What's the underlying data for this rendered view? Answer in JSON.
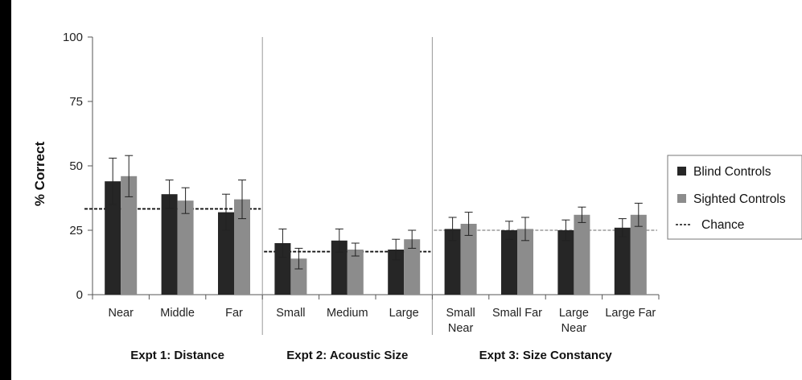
{
  "chart_data": {
    "type": "bar",
    "ylabel": "% Correct",
    "ylim": [
      0,
      100
    ],
    "yticks": [
      0,
      25,
      50,
      75,
      100
    ],
    "grid": false,
    "legend_position": "right",
    "groups": [
      {
        "label": "Expt 1: Distance",
        "categories": [
          "Near",
          "Middle",
          "Far"
        ],
        "chance": 33.3
      },
      {
        "label": "Expt 2: Acoustic Size",
        "categories": [
          "Small",
          "Medium",
          "Large"
        ],
        "chance": 16.7
      },
      {
        "label": "Expt 3: Size Constancy",
        "categories": [
          [
            "Small",
            "Near"
          ],
          [
            "Small Far"
          ],
          [
            "Large",
            "Near"
          ],
          [
            "Large Far"
          ]
        ],
        "chance": 25
      }
    ],
    "series": [
      {
        "name": "Blind Controls",
        "color": "#262626",
        "values": [
          44,
          39,
          32,
          20,
          21,
          17.5,
          25.5,
          25,
          25,
          26
        ],
        "errors": [
          9,
          5.5,
          7,
          5.5,
          4.5,
          4,
          4.5,
          3.5,
          4,
          3.5
        ]
      },
      {
        "name": "Sighted Controls",
        "color": "#8c8c8c",
        "values": [
          46,
          36.5,
          37,
          14,
          17.5,
          21.5,
          27.5,
          25.5,
          31,
          31
        ],
        "errors": [
          8,
          5,
          7.5,
          4,
          2.5,
          3.5,
          4.5,
          4.5,
          3,
          4.5
        ]
      }
    ],
    "chance_label": "Chance"
  }
}
